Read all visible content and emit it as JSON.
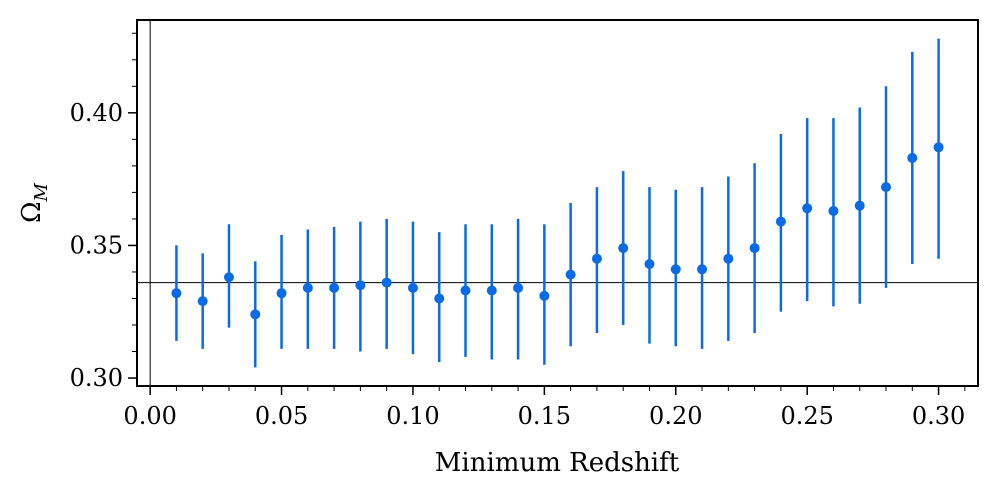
{
  "chart_data": {
    "type": "scatter",
    "title": "",
    "xlabel": "Minimum Redshift",
    "ylabel": "Ω_M",
    "ylabel_main": "Ω",
    "ylabel_sub": "M",
    "xlim": [
      -0.005,
      0.315
    ],
    "ylim": [
      0.297,
      0.435
    ],
    "x_ticks": [
      0.0,
      0.05,
      0.1,
      0.15,
      0.2,
      0.25,
      0.3
    ],
    "x_tick_labels": [
      "0.00",
      "0.05",
      "0.10",
      "0.15",
      "0.20",
      "0.25",
      "0.30"
    ],
    "y_ticks": [
      0.3,
      0.35,
      0.4
    ],
    "y_tick_labels": [
      "0.30",
      "0.35",
      "0.40"
    ],
    "x_minor_step": 0.01,
    "y_minor_step": 0.01,
    "grid": false,
    "reference_line": {
      "y": 0.336,
      "color": "#000000"
    },
    "vertical_line": {
      "x": 0.0
    },
    "marker_color": "#0a6be8",
    "series": [
      {
        "x": [
          0.01,
          0.02,
          0.03,
          0.04,
          0.05,
          0.06,
          0.07,
          0.08,
          0.09,
          0.1,
          0.11,
          0.12,
          0.13,
          0.14,
          0.15,
          0.16,
          0.17,
          0.18,
          0.19,
          0.2,
          0.21,
          0.22,
          0.23,
          0.24,
          0.25,
          0.26,
          0.27,
          0.28,
          0.29,
          0.3
        ],
        "y": [
          0.332,
          0.329,
          0.338,
          0.324,
          0.332,
          0.334,
          0.334,
          0.335,
          0.336,
          0.334,
          0.33,
          0.333,
          0.333,
          0.334,
          0.331,
          0.339,
          0.345,
          0.349,
          0.343,
          0.341,
          0.341,
          0.345,
          0.349,
          0.359,
          0.364,
          0.363,
          0.365,
          0.372,
          0.383,
          0.387
        ],
        "y_upper": [
          0.35,
          0.347,
          0.358,
          0.344,
          0.354,
          0.356,
          0.357,
          0.359,
          0.36,
          0.359,
          0.355,
          0.358,
          0.358,
          0.36,
          0.358,
          0.366,
          0.372,
          0.378,
          0.372,
          0.371,
          0.372,
          0.376,
          0.381,
          0.392,
          0.398,
          0.398,
          0.402,
          0.41,
          0.423,
          0.428
        ],
        "y_lower": [
          0.314,
          0.311,
          0.319,
          0.304,
          0.311,
          0.311,
          0.311,
          0.31,
          0.311,
          0.309,
          0.306,
          0.308,
          0.307,
          0.307,
          0.305,
          0.312,
          0.317,
          0.32,
          0.313,
          0.312,
          0.311,
          0.314,
          0.317,
          0.325,
          0.329,
          0.327,
          0.328,
          0.334,
          0.343,
          0.345
        ]
      }
    ]
  }
}
